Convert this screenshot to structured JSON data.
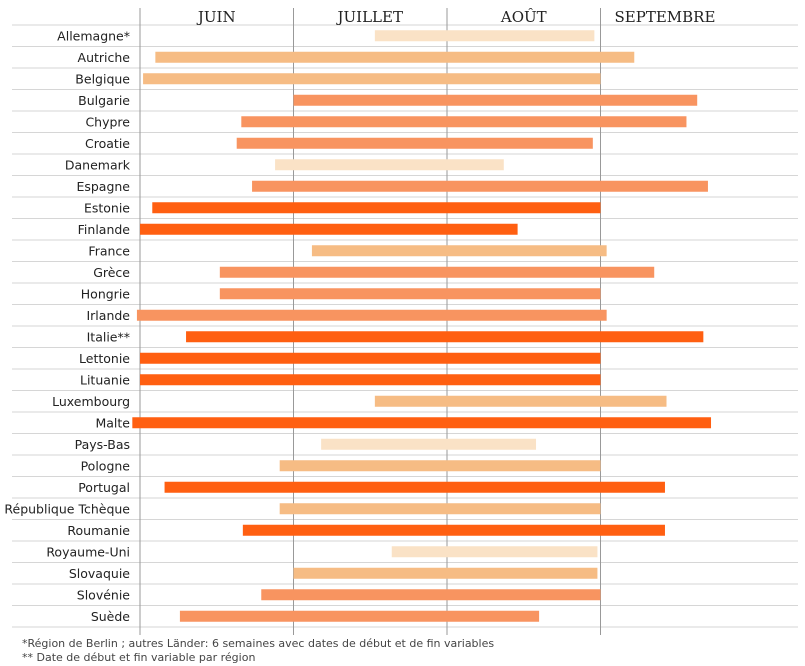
{
  "chart_data": {
    "type": "bar",
    "subtype": "gantt",
    "title": "",
    "xlabel": "",
    "ylabel": "",
    "x_axis_categories": [
      "JUIN",
      "JUILLET",
      "AOÛT",
      "SEPTEMBRE"
    ],
    "xlim": [
      0,
      4.5
    ],
    "x_unit": "months from start of June",
    "grid": true,
    "colors": {
      "level_1": "#FAE2C6",
      "level_2": "#F6BC84",
      "level_3": "#F89460",
      "level_4": "#FF5F11",
      "grid": "#d6d6d6",
      "month_line": "#999999"
    },
    "series": [
      {
        "label": "Allemagne*",
        "start": 1.53,
        "end": 2.96,
        "level": 1
      },
      {
        "label": "Autriche",
        "start": 0.1,
        "end": 3.22,
        "level": 2
      },
      {
        "label": "Belgique",
        "start": 0.02,
        "end": 3.0,
        "level": 2
      },
      {
        "label": "Bulgarie",
        "start": 1.0,
        "end": 3.63,
        "level": 3
      },
      {
        "label": "Chypre",
        "start": 0.66,
        "end": 3.56,
        "level": 3
      },
      {
        "label": "Croatie",
        "start": 0.63,
        "end": 2.95,
        "level": 3
      },
      {
        "label": "Danemark",
        "start": 0.88,
        "end": 2.37,
        "level": 1
      },
      {
        "label": "Espagne",
        "start": 0.73,
        "end": 3.7,
        "level": 3
      },
      {
        "label": "Estonie",
        "start": 0.08,
        "end": 3.0,
        "level": 4
      },
      {
        "label": "Finlande",
        "start": 0.0,
        "end": 2.46,
        "level": 4
      },
      {
        "label": "France",
        "start": 1.12,
        "end": 3.04,
        "level": 2
      },
      {
        "label": "Grèce",
        "start": 0.52,
        "end": 3.35,
        "level": 3
      },
      {
        "label": "Hongrie",
        "start": 0.52,
        "end": 3.0,
        "level": 3
      },
      {
        "label": "Irlande",
        "start": -0.02,
        "end": 3.04,
        "level": 3
      },
      {
        "label": "Italie**",
        "start": 0.3,
        "end": 3.67,
        "level": 4
      },
      {
        "label": "Lettonie",
        "start": 0.0,
        "end": 3.0,
        "level": 4
      },
      {
        "label": "Lituanie",
        "start": 0.0,
        "end": 3.0,
        "level": 4
      },
      {
        "label": "Luxembourg",
        "start": 1.53,
        "end": 3.43,
        "level": 2
      },
      {
        "label": "Malte",
        "start": -0.05,
        "end": 3.72,
        "level": 4
      },
      {
        "label": "Pays-Bas",
        "start": 1.18,
        "end": 2.58,
        "level": 1
      },
      {
        "label": "Pologne",
        "start": 0.91,
        "end": 3.0,
        "level": 2
      },
      {
        "label": "Portugal",
        "start": 0.16,
        "end": 3.42,
        "level": 4
      },
      {
        "label": "République Tchèque",
        "start": 0.91,
        "end": 3.0,
        "level": 2
      },
      {
        "label": "Roumanie",
        "start": 0.67,
        "end": 3.42,
        "level": 4
      },
      {
        "label": "Royaume-Uni",
        "start": 1.64,
        "end": 2.98,
        "level": 1
      },
      {
        "label": "Slovaquie",
        "start": 1.0,
        "end": 2.98,
        "level": 2
      },
      {
        "label": "Slovénie",
        "start": 0.79,
        "end": 3.0,
        "level": 3
      },
      {
        "label": "Suède",
        "start": 0.26,
        "end": 2.6,
        "level": 3
      }
    ],
    "footnotes": [
      "*Région de Berlin ; autres Länder: 6 semaines avec dates de début et de fin variables",
      "** Date de début et fin variable par région"
    ]
  }
}
